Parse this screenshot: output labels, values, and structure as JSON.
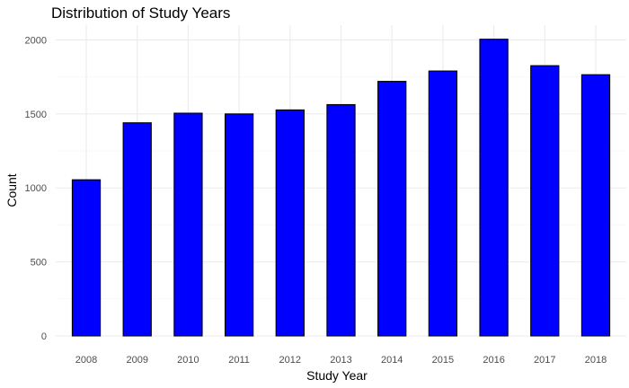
{
  "chart_data": {
    "type": "bar",
    "title": "Distribution of Study Years",
    "xlabel": "Study Year",
    "ylabel": "Count",
    "categories": [
      "2008",
      "2009",
      "2010",
      "2011",
      "2012",
      "2013",
      "2014",
      "2015",
      "2016",
      "2017",
      "2018"
    ],
    "values": [
      1055,
      1440,
      1505,
      1500,
      1527,
      1563,
      1720,
      1790,
      2005,
      1826,
      1765
    ],
    "ylim": [
      0,
      2100
    ],
    "yticks": [
      0,
      500,
      1000,
      1500,
      2000
    ],
    "grid": true,
    "bar_fill": "#0000ff",
    "bar_stroke": "#000000"
  }
}
